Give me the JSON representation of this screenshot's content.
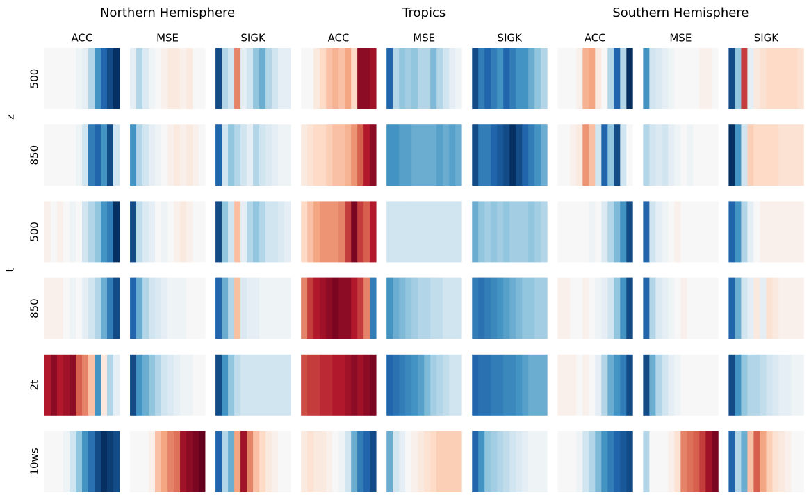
{
  "chart_data": {
    "type": "heatmap",
    "colormap": "RdBu",
    "vlim": [
      -1,
      1
    ],
    "groups": [
      "Northern Hemisphere",
      "Tropics",
      "Southern Hemisphere"
    ],
    "columns": [
      "ACC",
      "MSE",
      "SIGK",
      "ACC",
      "MSE",
      "SIGK",
      "ACC",
      "MSE",
      "SIGK"
    ],
    "rows": [
      {
        "label": "z",
        "levels": [
          "500",
          "850"
        ]
      },
      {
        "label": "t",
        "levels": [
          "500",
          "850"
        ]
      },
      {
        "label": "2t"
      },
      {
        "label": "10ws"
      }
    ],
    "values": [
      [
        [
          0,
          0,
          0,
          0,
          0,
          0.05,
          0.1,
          0.3,
          0.6,
          0.8,
          0.9,
          1
        ],
        [
          0.1,
          0.3,
          0.15,
          0.05,
          0,
          -0.05,
          -0.1,
          -0.1,
          -0.05,
          -0.1,
          0,
          0
        ],
        [
          0.9,
          0.3,
          0.2,
          -0.5,
          0.1,
          0.2,
          0.4,
          0.5,
          0.3,
          0.2,
          0.1,
          0.1
        ],
        [
          0,
          0,
          -0.1,
          -0.2,
          -0.3,
          -0.35,
          -0.3,
          -0.4,
          -0.2,
          -0.9,
          -0.9,
          -0.85
        ],
        [
          0.8,
          0.3,
          0.4,
          0.35,
          0.4,
          0.3,
          0.3,
          0.45,
          0.3,
          0.2,
          0.1,
          0.05
        ],
        [
          0.9,
          0.7,
          0.8,
          0.7,
          0.6,
          0.8,
          0.7,
          0.6,
          0.6,
          0.5,
          0.4,
          0.3
        ],
        [
          0,
          0,
          0,
          -0.05,
          -0.35,
          -0.4,
          -0.1,
          0,
          0.3,
          0.8,
          0.3,
          1
        ],
        [
          0.6,
          0.2,
          0.15,
          0.1,
          0.05,
          0,
          0,
          0,
          0,
          -0.05,
          -0.05,
          0
        ],
        [
          0.9,
          0.4,
          -0.7,
          0.1,
          -0.1,
          -0.15,
          -0.2,
          -0.2,
          -0.2,
          -0.2,
          -0.2,
          -0.15
        ]
      ],
      [
        [
          0,
          0,
          0,
          0,
          0,
          0.05,
          0.2,
          0.7,
          0.8,
          0.6,
          0.9,
          0.2
        ],
        [
          0.6,
          0.3,
          0.2,
          0.1,
          0.05,
          0,
          -0.05,
          -0.1,
          -0.05,
          -0.1,
          -0.05,
          0
        ],
        [
          0.8,
          0.2,
          0.4,
          0.3,
          0.2,
          0.1,
          0.3,
          0.2,
          0.15,
          0.1,
          0.05,
          0.05
        ],
        [
          -0.1,
          -0.15,
          -0.2,
          -0.2,
          -0.25,
          -0.3,
          -0.3,
          -0.35,
          -0.45,
          -0.6,
          -0.8,
          -0.9
        ],
        [
          0.6,
          0.6,
          0.55,
          0.55,
          0.5,
          0.5,
          0.5,
          0.5,
          0.55,
          0.5,
          0.55,
          0.5
        ],
        [
          0.9,
          0.7,
          0.7,
          0.8,
          0.85,
          0.9,
          1,
          0.9,
          0.8,
          0.7,
          0.6,
          0.5
        ],
        [
          0,
          0,
          -0.05,
          -0.1,
          -0.45,
          -0.3,
          0.2,
          0.8,
          0.4,
          0.9,
          0.2,
          0
        ],
        [
          0.3,
          0.2,
          0.15,
          0.2,
          0.1,
          0.05,
          0,
          0.05,
          0,
          0,
          0,
          0
        ],
        [
          1,
          0.6,
          0.2,
          -0.25,
          -0.2,
          -0.2,
          -0.2,
          -0.2,
          -0.15,
          -0.15,
          -0.15,
          -0.15
        ]
      ],
      [
        [
          -0.05,
          0,
          -0.05,
          0,
          0.05,
          0,
          0.2,
          0.3,
          0.4,
          0.6,
          0.7,
          1
        ],
        [
          0.9,
          0.25,
          0.15,
          0.1,
          0,
          0.05,
          0,
          -0.05,
          -0.1,
          -0.05,
          0,
          0
        ],
        [
          0.9,
          0.4,
          0.2,
          -0.3,
          0.1,
          0.3,
          0.4,
          0.3,
          0.2,
          0.2,
          0.15,
          0.1
        ],
        [
          -0.2,
          -0.3,
          -0.4,
          -0.45,
          -0.45,
          -0.45,
          -0.5,
          -0.7,
          -0.95,
          -0.7,
          -0.6,
          -0.8
        ],
        [
          0.2,
          0.2,
          0.2,
          0.2,
          0.2,
          0.2,
          0.2,
          0.2,
          0.2,
          0.2,
          0.2,
          0.2
        ],
        [
          0.5,
          0.4,
          0.35,
          0.4,
          0.35,
          0.4,
          0.35,
          0.35,
          0.35,
          0.4,
          0.35,
          0.3
        ],
        [
          0,
          0,
          0,
          0,
          0,
          0.05,
          0,
          0.15,
          0.3,
          0.45,
          0.6,
          0.9
        ],
        [
          0.8,
          0.2,
          0.1,
          0.05,
          0,
          -0.05,
          0,
          0,
          0,
          0,
          0,
          0
        ],
        [
          0.8,
          0.6,
          0.3,
          0.1,
          0,
          -0.05,
          -0.05,
          -0.05,
          -0.05,
          -0.05,
          -0.05,
          -0.05
        ]
      ],
      [
        [
          -0.05,
          -0.05,
          -0.05,
          0,
          0.05,
          0,
          0.1,
          0.2,
          0.3,
          0.5,
          0.7,
          0.9
        ],
        [
          0.8,
          0.5,
          0.3,
          0.2,
          0.15,
          0.1,
          0.05,
          0.05,
          0.05,
          0,
          0,
          0
        ],
        [
          0.8,
          0.5,
          0.3,
          -0.3,
          0.15,
          0.1,
          0.1,
          0.05,
          0.05,
          0.05,
          0.05,
          0.05
        ],
        [
          -0.5,
          -0.7,
          -0.8,
          -0.85,
          -0.9,
          -0.95,
          -0.9,
          -0.9,
          -0.8,
          -0.7,
          -0.5,
          0.7
        ],
        [
          0.6,
          0.5,
          0.45,
          0.4,
          0.35,
          0.3,
          0.3,
          0.25,
          0.25,
          0.2,
          0.2,
          0.2
        ],
        [
          0.7,
          0.75,
          0.7,
          0.65,
          0.6,
          0.55,
          0.5,
          0.45,
          0.4,
          0.4,
          0.35,
          0.35
        ],
        [
          -0.05,
          -0.05,
          0,
          0,
          -0.05,
          0,
          0.05,
          0.1,
          0.2,
          0.4,
          0.6,
          0.9
        ],
        [
          0.8,
          0.3,
          0.15,
          0.1,
          0.05,
          0,
          -0.05,
          0,
          0,
          0,
          0,
          0
        ],
        [
          0.8,
          0.5,
          0.2,
          0.1,
          -0.1,
          0.1,
          -0.15,
          -0.1,
          -0.05,
          -0.05,
          -0.05,
          -0.05
        ]
      ],
      [
        [
          -0.8,
          -0.9,
          -0.8,
          -0.85,
          -0.9,
          -0.6,
          -0.5,
          -0.3,
          0.6,
          -0.1,
          0.3,
          0.1
        ],
        [
          0.9,
          0.6,
          0.5,
          0.4,
          0.3,
          0.2,
          0.15,
          0.1,
          0.05,
          0.05,
          0,
          0
        ],
        [
          0.9,
          0.6,
          0.4,
          0.25,
          0.2,
          0.2,
          0.2,
          0.2,
          0.2,
          0.2,
          0.2,
          0.2
        ],
        [
          -0.65,
          -0.7,
          -0.7,
          -0.75,
          -0.75,
          -0.8,
          -0.8,
          -0.85,
          -0.9,
          -0.85,
          -0.9,
          -0.95
        ],
        [
          0.8,
          0.75,
          0.7,
          0.65,
          0.6,
          0.55,
          0.45,
          0.35,
          0.3,
          0.25,
          0.2,
          0.2
        ],
        [
          0.8,
          0.75,
          0.75,
          0.7,
          0.7,
          0.65,
          0.65,
          0.6,
          0.55,
          0.5,
          0.5,
          0.5
        ],
        [
          -0.05,
          -0.05,
          -0.05,
          0,
          -0.05,
          0,
          0.1,
          0.3,
          0.5,
          0.6,
          0.7,
          0.9
        ],
        [
          0.9,
          0.5,
          0.3,
          0.2,
          0.1,
          0.05,
          0,
          0,
          0,
          0,
          0,
          0
        ],
        [
          0.9,
          0.6,
          0.4,
          0.3,
          0.3,
          0.25,
          0.2,
          0.15,
          0.1,
          0.1,
          0.05,
          0.05
        ]
      ],
      [
        [
          0,
          0,
          0,
          0.05,
          0.2,
          0.4,
          0.6,
          0.75,
          0.9,
          1,
          0.95,
          0.9
        ],
        [
          0,
          0,
          0,
          -0.05,
          -0.3,
          -0.4,
          -0.5,
          -0.55,
          -0.85,
          -0.9,
          -0.95,
          -1
        ],
        [
          0.8,
          0.3,
          0.5,
          -0.4,
          -0.85,
          -0.5,
          -0.3,
          -0.2,
          -0.1,
          -0.05,
          0,
          0
        ],
        [
          -0.1,
          -0.15,
          -0.1,
          -0.1,
          -0.05,
          0,
          0.05,
          0.2,
          0.5,
          0.7,
          0.8,
          0.9
        ],
        [
          0.5,
          0.2,
          0.1,
          0,
          -0.05,
          -0.1,
          -0.15,
          -0.2,
          -0.25,
          -0.25,
          -0.25,
          -0.25
        ],
        [
          0.8,
          0.6,
          0.4,
          0.35,
          0.3,
          0.25,
          0.2,
          0.15,
          0.1,
          0.05,
          0.05,
          0.05
        ],
        [
          0,
          0,
          0,
          0.05,
          0.2,
          0.3,
          0.45,
          0.6,
          0.7,
          0.8,
          0.85,
          0.9
        ],
        [
          0.3,
          0,
          0,
          0,
          -0.05,
          -0.15,
          -0.5,
          -0.55,
          -0.6,
          -0.7,
          -0.85,
          -0.95
        ],
        [
          0.8,
          0.3,
          0.5,
          -0.3,
          -0.6,
          -0.4,
          -0.25,
          -0.15,
          -0.1,
          -0.05,
          0,
          0
        ]
      ]
    ]
  }
}
